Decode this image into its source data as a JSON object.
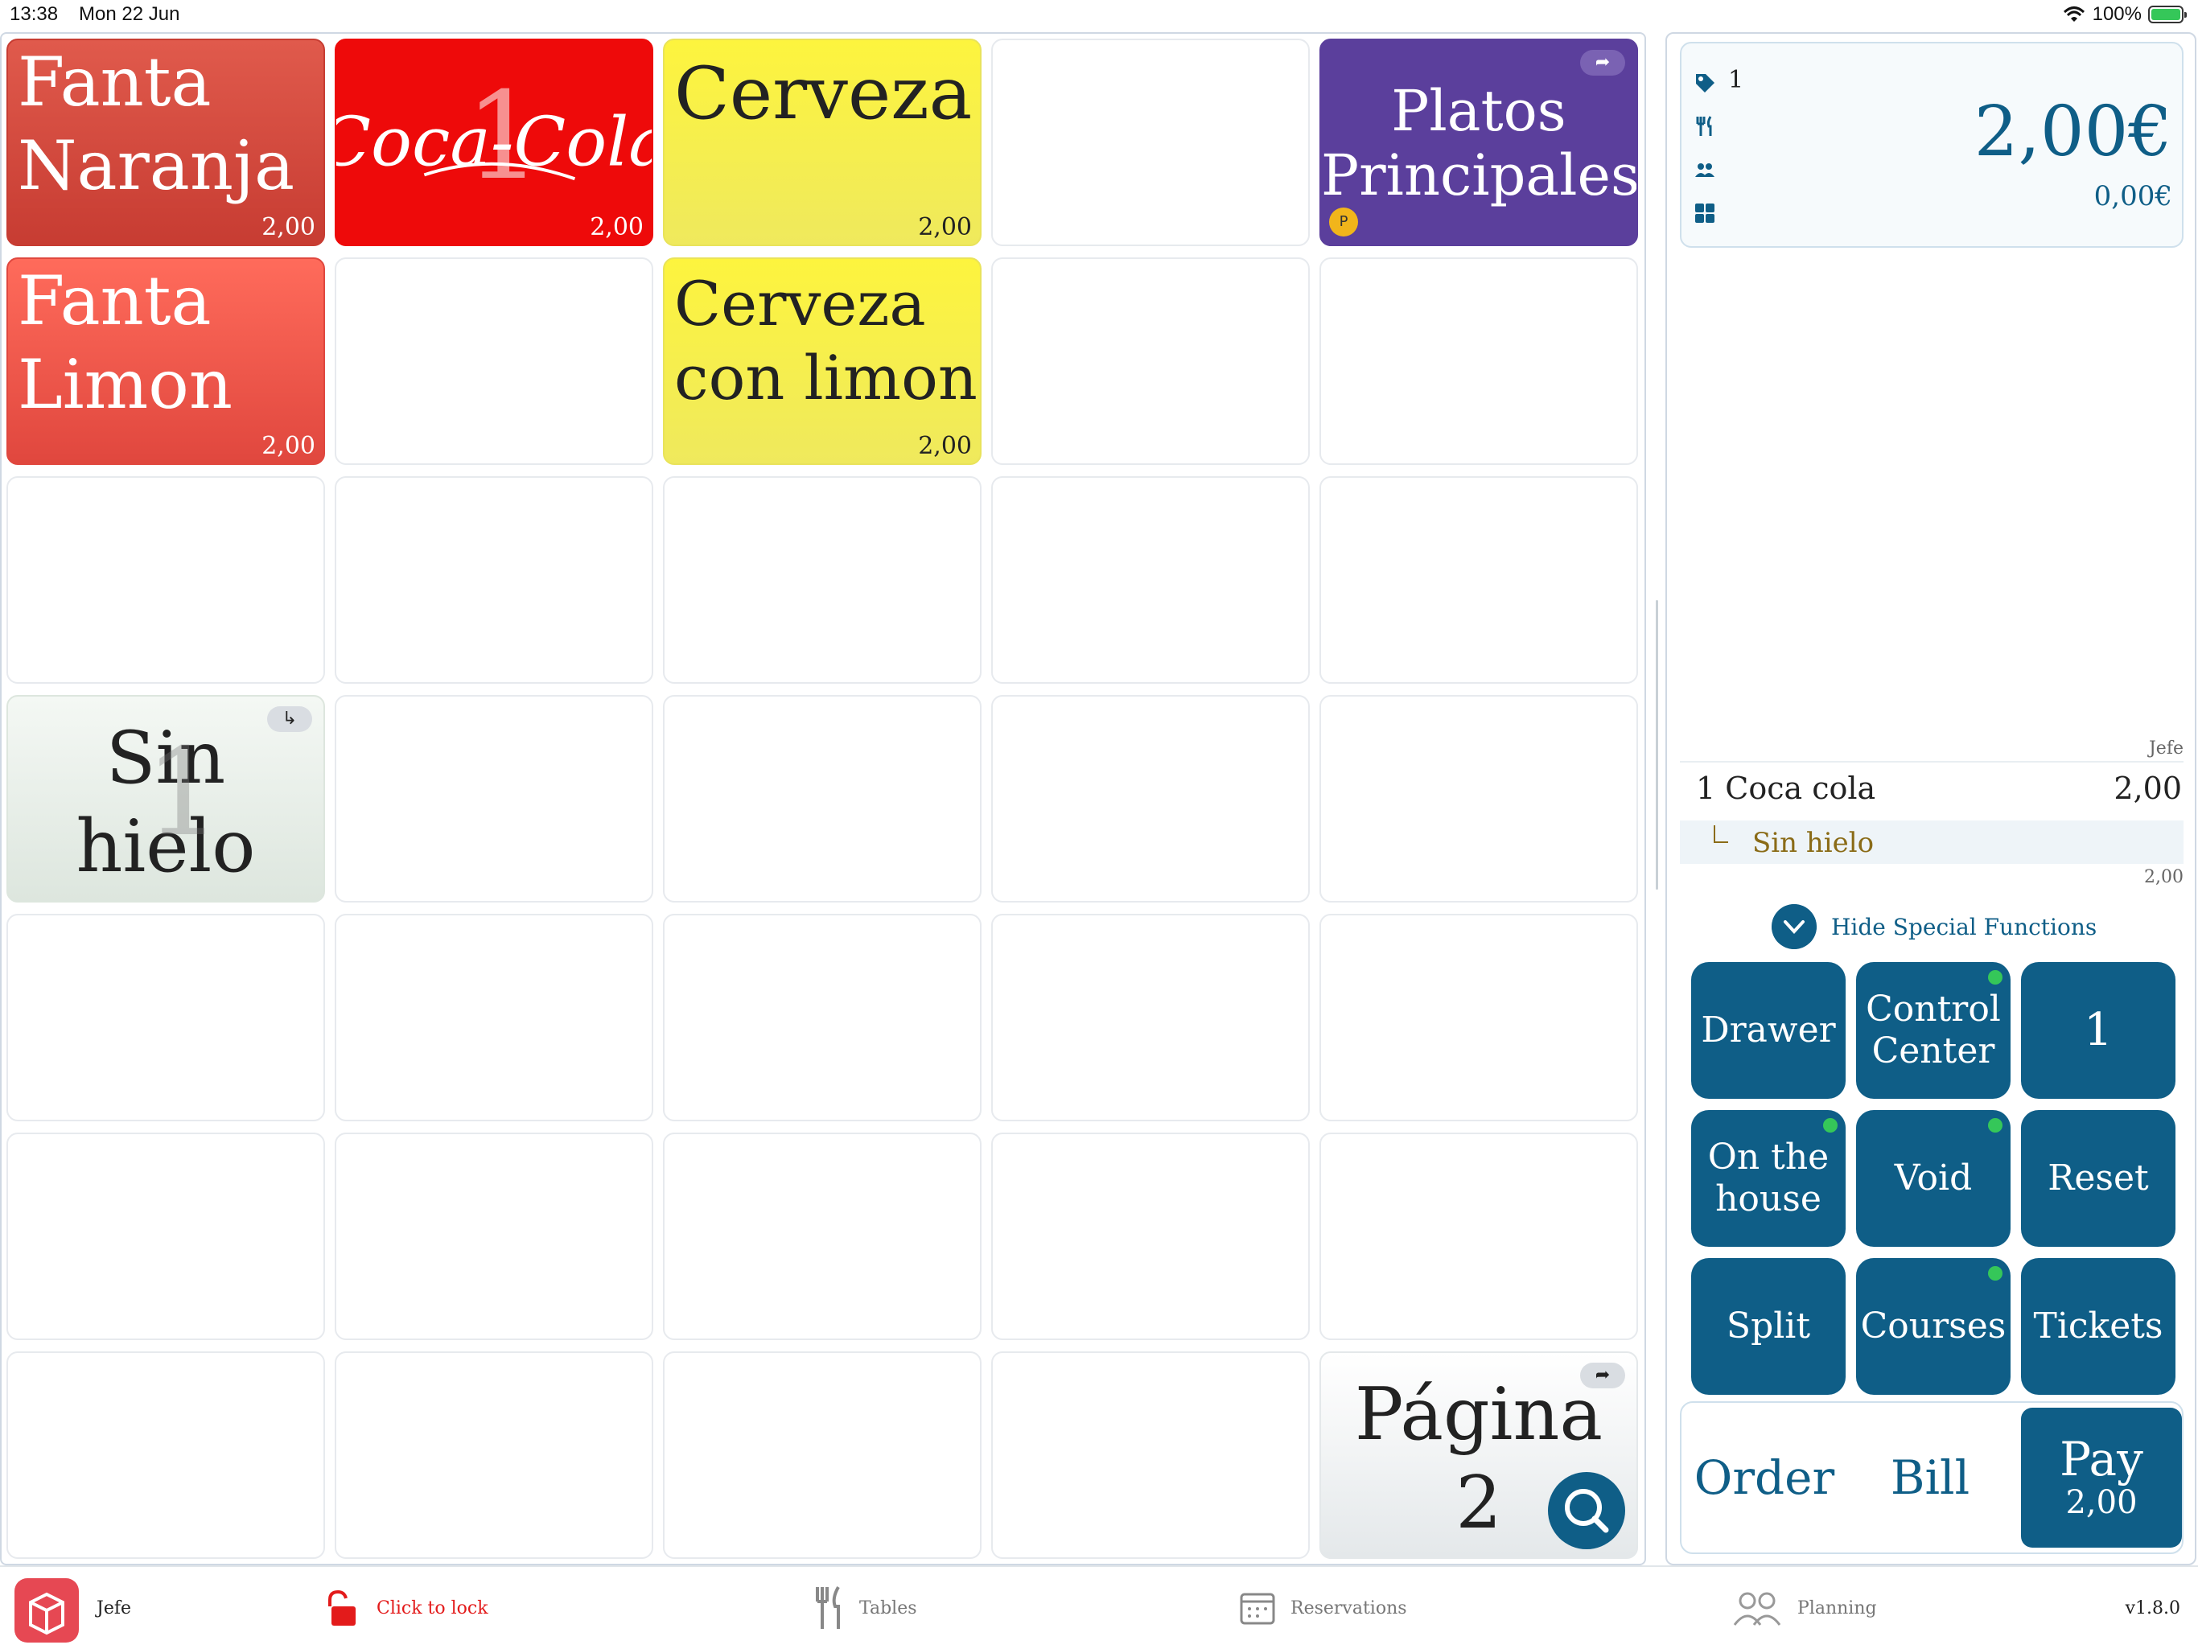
{
  "status_bar": {
    "time": "13:38",
    "date": "Mon 22 Jun",
    "battery": "100%"
  },
  "grid": {
    "tiles": [
      {
        "name": "Fanta\nNaranja",
        "price": "2,00"
      },
      {
        "name": "Coca-Cola",
        "price": "2,00",
        "badge_count": "1"
      },
      {
        "name": "Cerveza",
        "price": "2,00"
      },
      {
        "name": "Platos\nPrincipales",
        "p_badge": "P"
      },
      {
        "name": "Fanta\nLimon",
        "price": "2,00"
      },
      {
        "name": "Cerveza\ncon limon",
        "price": "2,00"
      },
      {
        "name": "Sin\nhielo",
        "badge_count": "1"
      },
      {
        "name": "Página\n2"
      }
    ]
  },
  "order": {
    "ticket_number": "1",
    "total": "2,00€",
    "subtotal": "0,00€",
    "server": "Jefe",
    "items": [
      {
        "qty_name": "1 Coca cola",
        "amount": "2,00",
        "modifier": "Sin hielo",
        "line_total": "2,00"
      }
    ],
    "hide_special": "Hide Special Functions",
    "functions": [
      {
        "label": "Drawer"
      },
      {
        "label": "Control\nCenter",
        "dot": true
      },
      {
        "label": "1"
      },
      {
        "label": "On the\nhouse",
        "dot": true
      },
      {
        "label": "Void",
        "dot": true
      },
      {
        "label": "Reset"
      },
      {
        "label": "Split"
      },
      {
        "label": "Courses",
        "dot": true
      },
      {
        "label": "Tickets"
      }
    ],
    "bottom": {
      "order": "Order",
      "bill": "Bill",
      "pay": "Pay",
      "pay_amount": "2,00"
    }
  },
  "tabbar": {
    "user": "Jefe",
    "lock": "Click to lock",
    "tables": "Tables",
    "reservations": "Reservations",
    "planning": "Planning",
    "version": "v1.8.0"
  },
  "colors": {
    "accent": "#0f5e87",
    "lock_red": "#e31b1b",
    "status_green": "#35c759"
  }
}
